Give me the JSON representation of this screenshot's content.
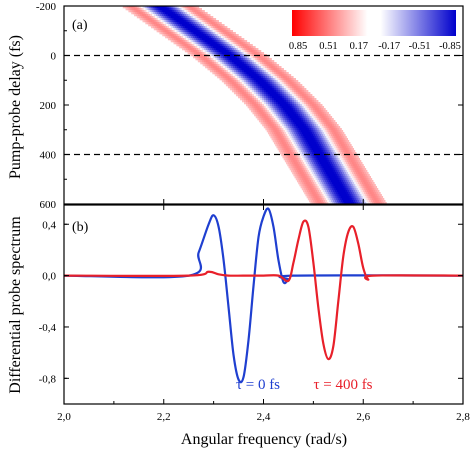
{
  "chart_data": [
    {
      "panel_label": "(a)",
      "type": "heatmap",
      "ylabel": "Pump-probe delay (fs)",
      "xlim": [
        2.0,
        2.8
      ],
      "ylim": [
        600,
        -200
      ],
      "y_ticks": [
        "-200",
        "0",
        "200",
        "400",
        "600"
      ],
      "reference_lines_y": [
        0,
        400
      ],
      "reference_line_style": "dashed",
      "band": {
        "center_curve": [
          [
            2.19,
            -200
          ],
          [
            2.26,
            -100
          ],
          [
            2.33,
            0
          ],
          [
            2.39,
            100
          ],
          [
            2.44,
            200
          ],
          [
            2.48,
            300
          ],
          [
            2.51,
            400
          ],
          [
            2.54,
            500
          ],
          [
            2.57,
            600
          ]
        ],
        "inner_sign": "negative (blue)",
        "outer_sign": "positive (red)"
      },
      "colorbar": {
        "tick_labels": [
          "0.85",
          "0.51",
          "0.17",
          "-0.17",
          "-0.51",
          "-0.85"
        ],
        "colors": {
          "positive": "#ff0000",
          "zero": "#ffffff",
          "negative": "#0000ff"
        }
      }
    },
    {
      "panel_label": "(b)",
      "type": "line",
      "ylabel": "Differential probe spectrum",
      "xlabel": "Angular frequency (rad/s)",
      "xlim": [
        2.0,
        2.8
      ],
      "ylim": [
        -1.0,
        0.55
      ],
      "x_ticks": [
        "2,0",
        "2,2",
        "2,4",
        "2,6",
        "2,8"
      ],
      "y_ticks": [
        "0,4",
        "0,0",
        "-0,4",
        "-0,8"
      ],
      "series": [
        {
          "name": "τ = 0 fs",
          "color": "#1f3fd0",
          "x": [
            2.0,
            2.25,
            2.27,
            2.29,
            2.3,
            2.31,
            2.32,
            2.33,
            2.34,
            2.35,
            2.36,
            2.37,
            2.38,
            2.39,
            2.4,
            2.41,
            2.42,
            2.43,
            2.44,
            2.45,
            2.46,
            2.8
          ],
          "y": [
            0.0,
            0.0,
            0.18,
            0.4,
            0.47,
            0.38,
            0.12,
            -0.25,
            -0.62,
            -0.81,
            -0.79,
            -0.5,
            -0.08,
            0.3,
            0.46,
            0.52,
            0.38,
            0.12,
            -0.05,
            -0.03,
            0.0,
            0.0
          ]
        },
        {
          "name": "τ = 400 fs",
          "color": "#e8202a",
          "x": [
            2.0,
            2.25,
            2.29,
            2.31,
            2.33,
            2.36,
            2.4,
            2.43,
            2.45,
            2.46,
            2.47,
            2.48,
            2.49,
            2.5,
            2.51,
            2.52,
            2.53,
            2.54,
            2.55,
            2.56,
            2.57,
            2.58,
            2.59,
            2.6,
            2.61,
            2.62,
            2.8
          ],
          "y": [
            0.0,
            0.0,
            0.03,
            0.01,
            0.0,
            0.0,
            0.0,
            0.0,
            -0.04,
            0.1,
            0.28,
            0.42,
            0.38,
            0.1,
            -0.25,
            -0.53,
            -0.65,
            -0.55,
            -0.2,
            0.15,
            0.34,
            0.38,
            0.25,
            0.06,
            -0.03,
            0.0,
            0.0
          ]
        }
      ]
    }
  ]
}
